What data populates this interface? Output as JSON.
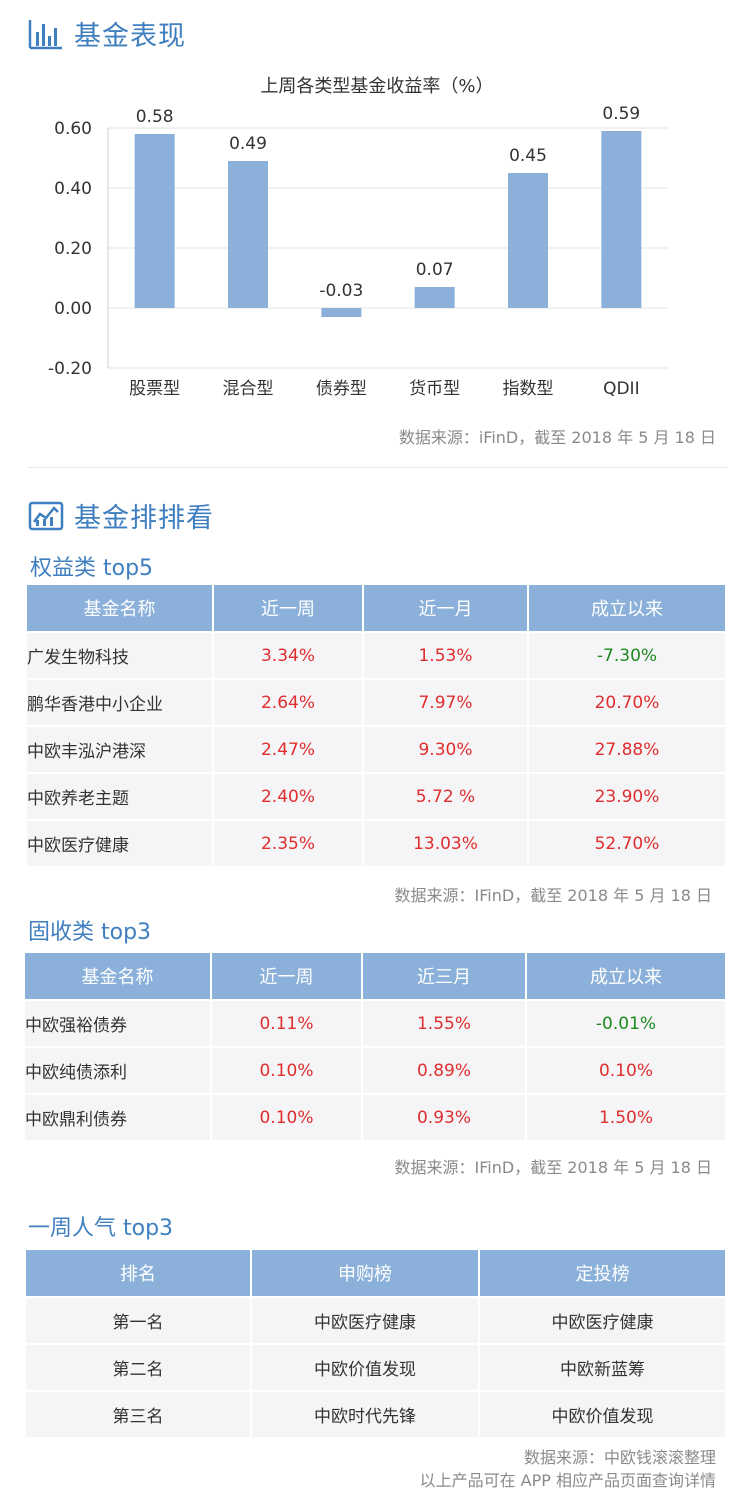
{
  "sections": {
    "performance_title": "基金表现",
    "ranking_title": "基金排排看"
  },
  "chart_data": {
    "type": "bar",
    "title": "上周各类型基金收益率（%）",
    "categories": [
      "股票型",
      "混合型",
      "债券型",
      "货币型",
      "指数型",
      "QDII"
    ],
    "values": [
      0.58,
      0.49,
      -0.03,
      0.07,
      0.45,
      0.59
    ],
    "data_labels": [
      "0.58",
      "0.49",
      "-0.03",
      "0.07",
      "0.45",
      "0.59"
    ],
    "y_ticks": [
      "0.60",
      "0.40",
      "0.20",
      "0.00",
      "-0.20"
    ],
    "y_tick_values": [
      0.6,
      0.4,
      0.2,
      0.0,
      -0.2
    ],
    "ylim": [
      -0.2,
      0.6
    ],
    "bar_color": "#8bb1da",
    "grid": true
  },
  "chart_source": "数据来源：iFinD，截至 2018 年 5 月 18 日",
  "equity": {
    "title": "权益类 top5",
    "headers": [
      "基金名称",
      "近一周",
      "近一月",
      "成立以来"
    ],
    "rows": [
      {
        "name": "广发生物科技",
        "week": "3.34%",
        "month": "1.53%",
        "since": "-7.30%"
      },
      {
        "name": "鹏华香港中小企业",
        "week": "2.64%",
        "month": "7.97%",
        "since": "20.70%"
      },
      {
        "name": "中欧丰泓沪港深",
        "week": "2.47%",
        "month": "9.30%",
        "since": "27.88%"
      },
      {
        "name": "中欧养老主题",
        "week": "2.40%",
        "month": "5.72  %",
        "since": "23.90%"
      },
      {
        "name": "中欧医疗健康",
        "week": "2.35%",
        "month": "13.03%",
        "since": "52.70%"
      }
    ],
    "source": "数据来源：IFinD，截至 2018 年 5 月 18 日"
  },
  "fixed": {
    "title": "固收类 top3",
    "headers": [
      "基金名称",
      "近一周",
      "近三月",
      "成立以来"
    ],
    "rows": [
      {
        "name": "中欧强裕债券",
        "week": "0.11%",
        "month": "1.55%",
        "since": "-0.01%"
      },
      {
        "name": "中欧纯债添利",
        "week": "0.10%",
        "month": "0.89%",
        "since": "0.10%"
      },
      {
        "name": "中欧鼎利债券",
        "week": "0.10%",
        "month": "0.93%",
        "since": "1.50%"
      }
    ],
    "source": "数据来源：IFinD，截至 2018 年 5 月 18 日"
  },
  "popular": {
    "title": "一周人气 top3",
    "headers": [
      "排名",
      "申购榜",
      "定投榜"
    ],
    "rows": [
      {
        "rank": "第一名",
        "purchase": "中欧医疗健康",
        "plan": "中欧医疗健康"
      },
      {
        "rank": "第二名",
        "purchase": "中欧价值发现",
        "plan": "中欧新蓝筹"
      },
      {
        "rank": "第三名",
        "purchase": "中欧时代先锋",
        "plan": "中欧价值发现"
      }
    ],
    "source": "数据来源：中欧钱滚滚整理",
    "note": "以上产品可在 APP 相应产品页面查询详情"
  }
}
